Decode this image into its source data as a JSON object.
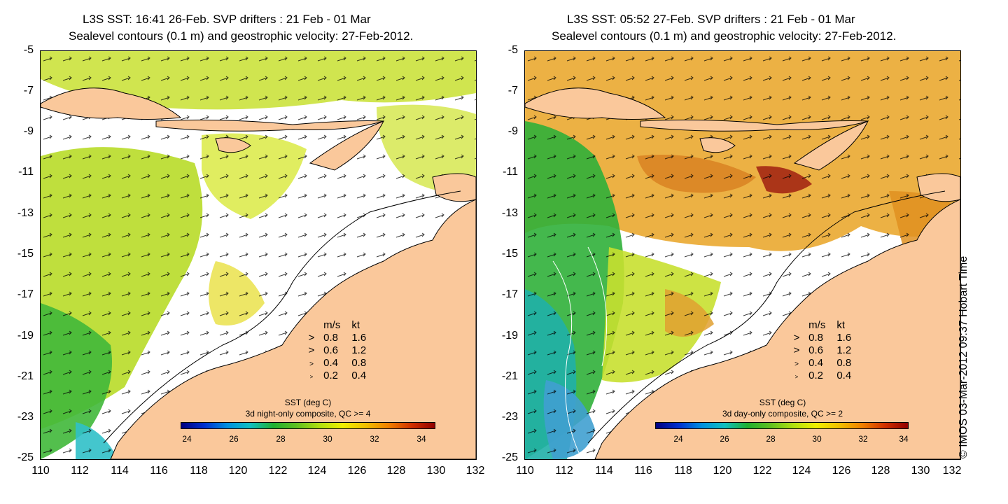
{
  "maps": [
    {
      "title_line1": "L3S SST: 16:41 26-Feb. SVP drifters : 21 Feb - 01 Mar",
      "title_line2": "Sealevel contours (0.1 m) and geostrophic velocity: 27-Feb-2012.",
      "colorbar_title": "SST (deg C)",
      "colorbar_subtitle": "3d night-only composite, QC >= 4"
    },
    {
      "title_line1": "L3S SST: 05:52 27-Feb. SVP drifters : 21 Feb - 01 Mar",
      "title_line2": "Sealevel contours (0.1 m) and geostrophic velocity: 27-Feb-2012.",
      "colorbar_title": "SST (deg C)",
      "colorbar_subtitle": "3d day-only composite, QC >= 2"
    }
  ],
  "y_ticks": [
    "-5",
    "-7",
    "-9",
    "-11",
    "-13",
    "-15",
    "-17",
    "-19",
    "-21",
    "-23",
    "-25"
  ],
  "x_ticks": [
    "110",
    "112",
    "114",
    "116",
    "118",
    "120",
    "122",
    "124",
    "126",
    "128",
    "130",
    "132"
  ],
  "velocity_legend": {
    "header_ms": "m/s",
    "header_kt": "kt",
    "rows": [
      {
        "ms": "0.8",
        "kt": "1.6"
      },
      {
        "ms": "0.6",
        "kt": "1.2"
      },
      {
        "ms": "0.4",
        "kt": "0.8"
      },
      {
        "ms": "0.2",
        "kt": "0.4"
      }
    ]
  },
  "colorbar_ticks": [
    "24",
    "26",
    "28",
    "30",
    "32",
    "34"
  ],
  "credit": "© IMOS 03-Mar-2012 09:37 Hobart Time",
  "colors": {
    "land": "#fac89b",
    "warm": "#e89a20",
    "cool": "#20b040"
  }
}
